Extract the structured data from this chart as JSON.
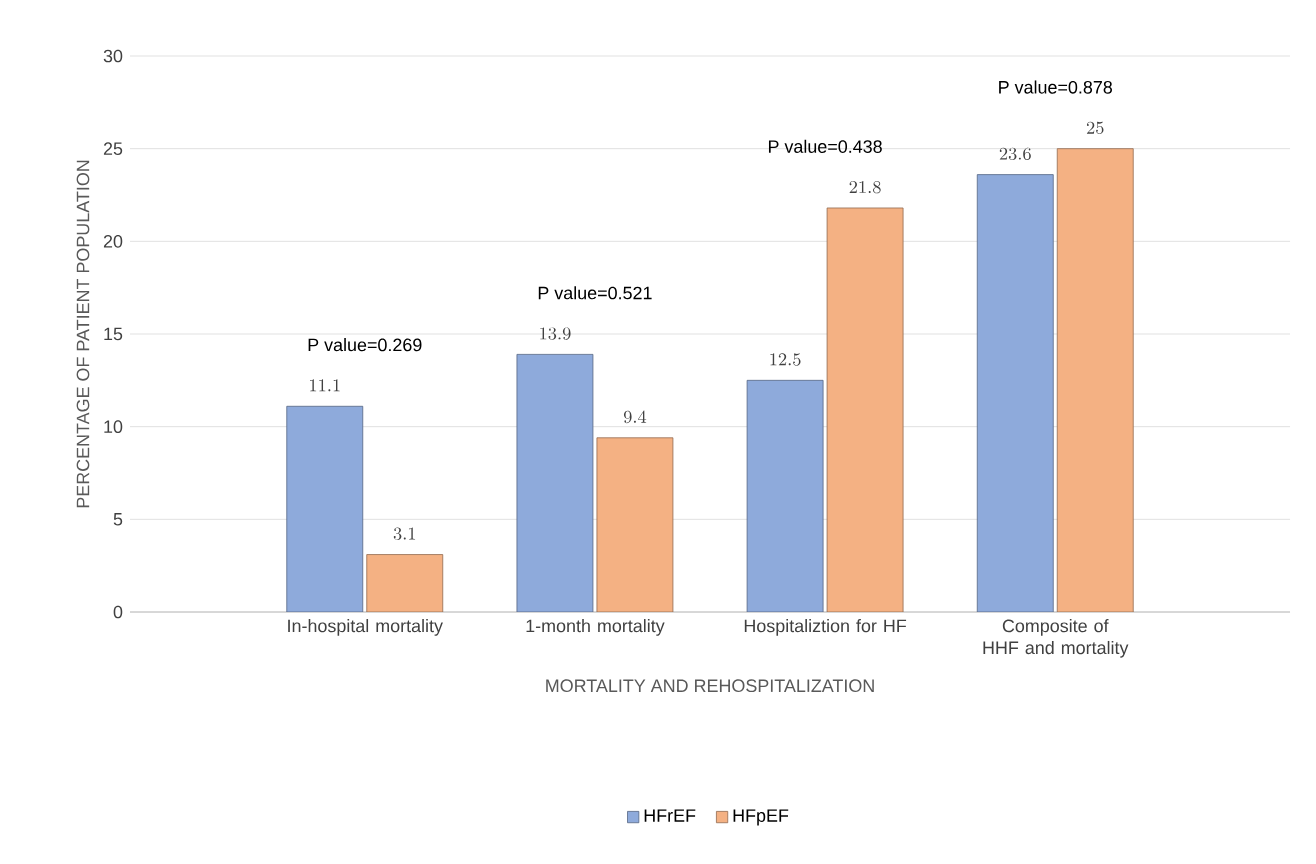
{
  "chart_data": {
    "type": "bar",
    "xlabel": "MORTALITY AND REHOSPITALIZATION",
    "ylabel": "PERCENTAGE OF PATIENT POPULATION",
    "categories": [
      "In-hospital mortality",
      "1-month mortality",
      "Hospitaliztion for HF",
      "Composite of HHF and mortality"
    ],
    "series": [
      {
        "name": "HFrEF",
        "color": "#8eaadb",
        "values": [
          11.1,
          13.9,
          12.5,
          23.6
        ]
      },
      {
        "name": "HFpEF",
        "color": "#f4b183",
        "values": [
          3.1,
          9.4,
          21.8,
          25
        ]
      }
    ],
    "annotations": [
      "P value=0.269",
      "P value=0.521",
      "P value=0.438",
      "P value=0.878"
    ],
    "ylim": [
      0,
      30
    ],
    "yticks": [
      0,
      5,
      10,
      15,
      20,
      25,
      30
    ],
    "grid": "y",
    "data_labels": true,
    "legend": "bottom"
  }
}
